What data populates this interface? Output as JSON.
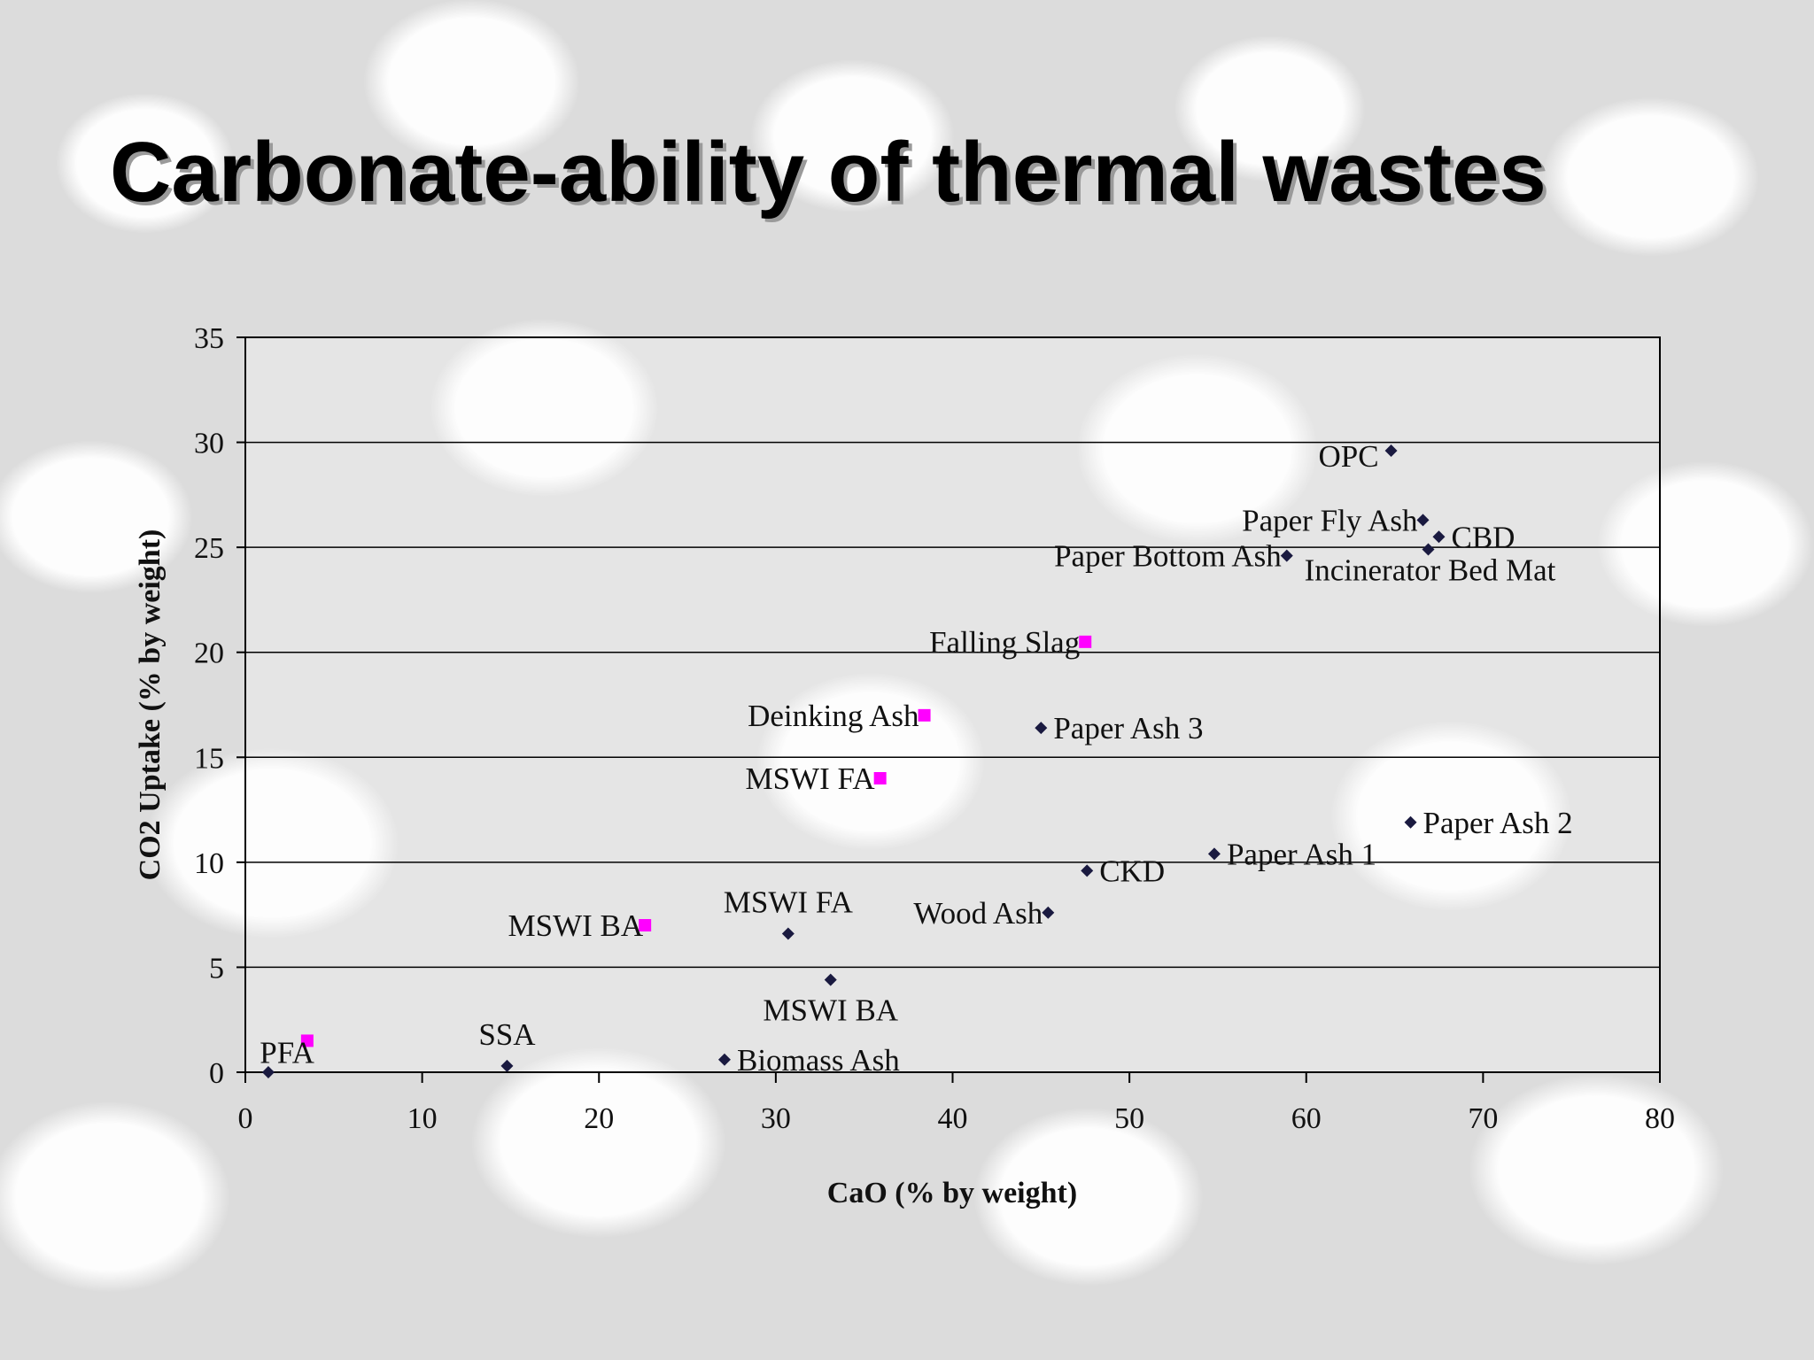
{
  "slide": {
    "title": "Carbonate-ability of thermal wastes"
  },
  "colors": {
    "diamond": "#1a1a40",
    "square": "#ff00ff",
    "grid": "#000000"
  },
  "chart_data": {
    "type": "scatter",
    "title": "Carbonate-ability of thermal wastes",
    "xlabel": "CaO (% by weight)",
    "ylabel": "CO2 Uptake (% by weight)",
    "xlim": [
      0,
      80
    ],
    "ylim": [
      0,
      35
    ],
    "xticks": [
      "0",
      "10",
      "20",
      "30",
      "40",
      "50",
      "60",
      "70",
      "80"
    ],
    "yticks": [
      "0",
      "5",
      "10",
      "15",
      "20",
      "25",
      "30",
      "35"
    ],
    "grid": "horizontal",
    "series": [
      {
        "marker": "diamond",
        "color": "#1a1a40",
        "points": [
          {
            "label": "OPC",
            "x": 64.8,
            "y": 29.6,
            "anchor": "left"
          },
          {
            "label": "Paper Fly Ash",
            "x": 66.6,
            "y": 26.3,
            "anchor": "left"
          },
          {
            "label": "CBD",
            "x": 67.5,
            "y": 25.5,
            "anchor": "right"
          },
          {
            "label": "Incinerator Bed Mat",
            "x": 66.9,
            "y": 24.9,
            "anchor": "below"
          },
          {
            "label": "Paper Bottom Ash",
            "x": 58.9,
            "y": 24.6,
            "anchor": "left"
          },
          {
            "label": "Paper Ash 3",
            "x": 45.0,
            "y": 16.4,
            "anchor": "right"
          },
          {
            "label": "Paper Ash 2",
            "x": 65.9,
            "y": 11.9,
            "anchor": "right"
          },
          {
            "label": "Paper Ash 1",
            "x": 54.8,
            "y": 10.4,
            "anchor": "right"
          },
          {
            "label": "CKD",
            "x": 47.6,
            "y": 9.6,
            "anchor": "right"
          },
          {
            "label": "Wood Ash",
            "x": 45.4,
            "y": 7.6,
            "anchor": "left"
          },
          {
            "label": "MSWI FA",
            "x": 30.7,
            "y": 6.6,
            "anchor": "above"
          },
          {
            "label": "MSWI BA",
            "x": 33.1,
            "y": 4.4,
            "anchor": "below"
          },
          {
            "label": "SSA",
            "x": 14.8,
            "y": 0.3,
            "anchor": "above"
          },
          {
            "label": "Biomass Ash",
            "x": 27.1,
            "y": 0.6,
            "anchor": "right"
          },
          {
            "label": "",
            "x": 1.3,
            "y": 0.0,
            "anchor": "none"
          }
        ]
      },
      {
        "marker": "square",
        "color": "#ff00ff",
        "points": [
          {
            "label": "Falling Slag",
            "x": 47.5,
            "y": 20.5,
            "anchor": "left"
          },
          {
            "label": "Deinking Ash",
            "x": 38.4,
            "y": 17.0,
            "anchor": "left"
          },
          {
            "label": "MSWI FA",
            "x": 35.9,
            "y": 14.0,
            "anchor": "left"
          },
          {
            "label": "MSWI BA",
            "x": 22.6,
            "y": 7.0,
            "anchor": "left"
          },
          {
            "label": "PFA",
            "x": 3.5,
            "y": 1.5,
            "anchor": "left"
          }
        ]
      }
    ]
  }
}
